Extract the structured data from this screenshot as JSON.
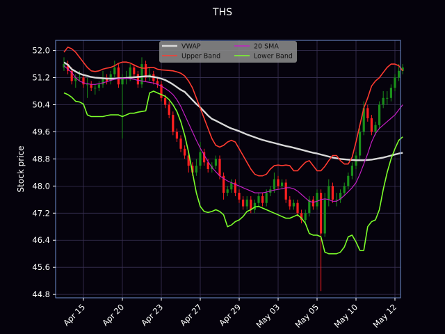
{
  "colors": {
    "background": "#05020c",
    "plot_border": "#6f8fcf",
    "grid": "#3a3256",
    "up_candle": "#1a8f1a",
    "down_candle": "#ff2020",
    "vwap": "#d9d9d9",
    "upper_band": "#ff3b30",
    "sma20": "#c41fc4",
    "lower_band": "#7dff2a"
  },
  "chart_data": {
    "type": "line",
    "subtype": "candlestick-with-bollinger-bands",
    "title": "THS",
    "xlabel": "",
    "ylabel": "Stock price",
    "ylim": [
      44.7,
      52.3
    ],
    "y_ticks": [
      44.8,
      45.6,
      46.4,
      47.2,
      48.0,
      48.8,
      49.6,
      50.4,
      51.2,
      52.0
    ],
    "y_tick_labels": [
      "44.8",
      "45.6",
      "46.4",
      "47.2",
      "48.0",
      "48.8",
      "49.6",
      "50.4",
      "51.2",
      "52.0"
    ],
    "x_tick_labels": [
      "Apr 15",
      "Apr 20",
      "Apr 23",
      "Apr 27",
      "Apr 29",
      "May 03",
      "May 05",
      "May 10",
      "May 12"
    ],
    "x_tick_index": [
      5,
      15,
      25,
      35,
      45,
      55,
      65,
      75,
      85
    ],
    "grid": true,
    "legend_position": "top-center",
    "legend": [
      "VWAP",
      "Upper Band",
      "20 SMA",
      "Lower Band"
    ],
    "n_points": 88,
    "series": [
      {
        "name": "VWAP",
        "values": [
          51.65,
          51.58,
          51.45,
          51.38,
          51.32,
          51.28,
          51.25,
          51.22,
          51.2,
          51.19,
          51.18,
          51.17,
          51.17,
          51.17,
          51.18,
          51.18,
          51.19,
          51.2,
          51.21,
          51.22,
          51.23,
          51.24,
          51.24,
          51.22,
          51.2,
          51.17,
          51.13,
          51.07,
          51.0,
          50.92,
          50.84,
          50.78,
          50.66,
          50.54,
          50.42,
          50.32,
          50.2,
          50.08,
          49.98,
          49.93,
          49.87,
          49.81,
          49.75,
          49.7,
          49.66,
          49.62,
          49.57,
          49.52,
          49.48,
          49.44,
          49.4,
          49.36,
          49.33,
          49.3,
          49.27,
          49.24,
          49.21,
          49.18,
          49.16,
          49.13,
          49.1,
          49.07,
          49.04,
          49.01,
          48.98,
          48.96,
          48.93,
          48.9,
          48.87,
          48.84,
          48.82,
          48.8,
          48.79,
          48.78,
          48.77,
          48.76,
          48.76,
          48.76,
          48.77,
          48.78,
          48.8,
          48.82,
          48.84,
          48.87,
          48.9,
          48.93,
          48.96,
          48.98
        ]
      },
      {
        "name": "Upper Band",
        "values": [
          51.95,
          52.1,
          52.05,
          51.95,
          51.8,
          51.65,
          51.5,
          51.4,
          51.38,
          51.4,
          51.45,
          51.48,
          51.5,
          51.55,
          51.62,
          51.66,
          51.66,
          51.63,
          51.57,
          51.52,
          51.48,
          51.48,
          51.5,
          51.5,
          51.45,
          51.43,
          51.42,
          51.41,
          51.4,
          51.37,
          51.33,
          51.25,
          51.1,
          50.9,
          50.6,
          50.3,
          50.0,
          49.7,
          49.4,
          49.2,
          49.15,
          49.2,
          49.3,
          49.35,
          49.3,
          49.1,
          48.9,
          48.7,
          48.5,
          48.35,
          48.3,
          48.3,
          48.35,
          48.5,
          48.6,
          48.62,
          48.6,
          48.62,
          48.6,
          48.45,
          48.45,
          48.58,
          48.7,
          48.75,
          48.6,
          48.45,
          48.45,
          48.58,
          48.75,
          48.9,
          48.9,
          48.75,
          48.65,
          48.65,
          48.85,
          49.3,
          49.8,
          50.3,
          50.6,
          50.95,
          51.1,
          51.2,
          51.35,
          51.5,
          51.6,
          51.6,
          51.55,
          51.4
        ]
      },
      {
        "name": "20 SMA",
        "values": [
          51.55,
          51.45,
          51.35,
          51.2,
          51.1,
          51.05,
          51.02,
          51.0,
          51.0,
          51.02,
          51.05,
          51.08,
          51.12,
          51.15,
          51.17,
          51.18,
          51.18,
          51.17,
          51.15,
          51.12,
          51.1,
          51.08,
          51.06,
          51.04,
          51.0,
          50.95,
          50.88,
          50.8,
          50.7,
          50.55,
          50.35,
          50.1,
          49.85,
          49.6,
          49.35,
          49.12,
          48.92,
          48.72,
          48.55,
          48.42,
          48.3,
          48.22,
          48.15,
          48.1,
          48.05,
          48.0,
          47.95,
          47.9,
          47.85,
          47.8,
          47.8,
          47.8,
          47.82,
          47.85,
          47.88,
          47.9,
          47.92,
          47.95,
          47.95,
          47.92,
          47.85,
          47.75,
          47.65,
          47.55,
          47.52,
          47.55,
          47.6,
          47.62,
          47.6,
          47.55,
          47.55,
          47.62,
          47.72,
          47.83,
          47.95,
          48.1,
          48.35,
          48.65,
          48.95,
          49.3,
          49.55,
          49.7,
          49.8,
          49.9,
          50.0,
          50.1,
          50.25,
          50.4
        ]
      },
      {
        "name": "Lower Band",
        "values": [
          50.75,
          50.7,
          50.62,
          50.5,
          50.48,
          50.42,
          50.1,
          50.05,
          50.05,
          50.05,
          50.05,
          50.08,
          50.1,
          50.1,
          50.1,
          50.05,
          50.1,
          50.15,
          50.15,
          50.18,
          50.2,
          50.22,
          50.75,
          50.8,
          50.75,
          50.7,
          50.65,
          50.55,
          50.4,
          50.2,
          49.9,
          49.5,
          49.0,
          48.4,
          47.8,
          47.4,
          47.25,
          47.22,
          47.25,
          47.3,
          47.25,
          47.15,
          46.8,
          46.85,
          46.95,
          47.0,
          47.1,
          47.25,
          47.3,
          47.38,
          47.4,
          47.35,
          47.3,
          47.25,
          47.2,
          47.15,
          47.1,
          47.05,
          47.05,
          47.1,
          47.15,
          47.05,
          46.9,
          46.6,
          46.55,
          46.55,
          46.5,
          46.05,
          46.0,
          46.0,
          46.0,
          46.05,
          46.2,
          46.5,
          46.55,
          46.35,
          46.1,
          46.1,
          46.8,
          46.95,
          47.0,
          47.3,
          47.9,
          48.4,
          48.8,
          49.1,
          49.35,
          49.45
        ]
      }
    ],
    "candles": {
      "open": [
        51.5,
        51.6,
        51.4,
        51.1,
        51.2,
        51.2,
        51.0,
        51.0,
        50.9,
        50.9,
        51.0,
        51.2,
        51.1,
        51.3,
        51.5,
        51.0,
        51.2,
        51.2,
        51.5,
        51.3,
        51.0,
        51.6,
        51.2,
        51.3,
        51.1,
        51.0,
        50.6,
        50.4,
        50.1,
        49.6,
        49.4,
        49.1,
        48.9,
        48.6,
        48.4,
        48.6,
        49.0,
        48.7,
        48.5,
        48.6,
        48.8,
        48.3,
        47.8,
        47.9,
        48.1,
        47.8,
        47.6,
        47.4,
        47.6,
        47.3,
        47.5,
        47.7,
        47.5,
        47.8,
        47.9,
        48.2,
        48.0,
        48.1,
        47.6,
        47.4,
        47.5,
        47.2,
        47.0,
        47.2,
        47.6,
        47.4,
        47.8,
        46.6,
        47.6,
        48.0,
        47.6,
        47.6,
        47.8,
        48.0,
        48.3,
        48.6,
        48.9,
        49.6,
        50.3,
        50.0,
        49.6,
        49.8,
        50.4,
        50.6,
        50.6,
        50.9,
        51.2,
        51.4
      ],
      "close": [
        51.6,
        51.4,
        51.1,
        51.2,
        51.2,
        51.0,
        51.0,
        50.9,
        50.9,
        51.0,
        51.2,
        51.1,
        51.3,
        51.5,
        51.0,
        51.2,
        51.2,
        51.5,
        51.3,
        51.0,
        51.6,
        51.2,
        51.3,
        51.1,
        51.0,
        50.6,
        50.4,
        50.1,
        49.6,
        49.4,
        49.1,
        48.9,
        48.6,
        48.4,
        48.6,
        49.0,
        48.7,
        48.5,
        48.6,
        48.8,
        48.3,
        47.8,
        47.9,
        48.1,
        47.8,
        47.6,
        47.4,
        47.6,
        47.3,
        47.5,
        47.7,
        47.5,
        47.8,
        47.9,
        48.2,
        48.0,
        48.1,
        47.6,
        47.4,
        47.5,
        47.2,
        47.0,
        47.2,
        47.6,
        47.4,
        47.8,
        46.6,
        47.6,
        48.0,
        47.6,
        47.6,
        47.8,
        48.0,
        48.3,
        48.6,
        48.9,
        49.6,
        50.3,
        50.0,
        49.6,
        49.8,
        50.4,
        50.6,
        50.6,
        50.9,
        51.2,
        51.4,
        51.5
      ],
      "high": [
        51.8,
        51.7,
        51.5,
        51.3,
        51.4,
        51.3,
        51.2,
        51.1,
        51.0,
        51.1,
        51.4,
        51.3,
        51.4,
        51.7,
        51.6,
        51.3,
        51.4,
        51.6,
        51.6,
        51.4,
        51.8,
        51.7,
        51.5,
        51.4,
        51.2,
        51.1,
        50.7,
        50.5,
        50.2,
        49.7,
        49.5,
        49.2,
        49.0,
        48.7,
        48.8,
        49.3,
        49.1,
        48.8,
        48.7,
        48.9,
        48.9,
        48.4,
        48.0,
        48.2,
        48.2,
        47.9,
        47.7,
        47.7,
        47.7,
        47.6,
        47.8,
        47.8,
        47.9,
        48.0,
        48.4,
        48.3,
        48.2,
        48.2,
        47.7,
        47.6,
        47.6,
        47.3,
        47.3,
        47.7,
        47.7,
        47.9,
        47.9,
        47.8,
        48.2,
        48.1,
        47.8,
        47.9,
        48.1,
        48.4,
        48.7,
        49.0,
        49.7,
        50.5,
        50.4,
        50.1,
        49.9,
        50.5,
        50.8,
        50.8,
        51.0,
        51.3,
        51.6,
        51.6
      ],
      "low": [
        51.4,
        51.3,
        51.0,
        50.9,
        51.1,
        50.9,
        50.6,
        50.8,
        50.7,
        50.8,
        50.9,
        51.0,
        51.0,
        51.2,
        50.9,
        49.4,
        51.0,
        51.1,
        51.2,
        50.9,
        50.9,
        51.1,
        51.1,
        51.0,
        50.9,
        50.5,
        50.3,
        50.0,
        49.5,
        49.3,
        49.0,
        48.8,
        48.4,
        48.3,
        48.3,
        48.5,
        48.6,
        48.4,
        48.4,
        48.5,
        48.2,
        47.6,
        47.7,
        47.8,
        47.7,
        47.5,
        47.3,
        47.3,
        47.2,
        47.2,
        47.4,
        47.4,
        47.4,
        47.7,
        47.8,
        47.9,
        47.9,
        47.5,
        47.3,
        47.3,
        47.1,
        46.9,
        46.9,
        47.1,
        47.3,
        47.3,
        44.9,
        46.5,
        47.4,
        47.5,
        47.4,
        47.5,
        47.7,
        47.9,
        48.2,
        48.5,
        48.8,
        49.5,
        49.9,
        49.5,
        49.5,
        49.7,
        50.3,
        50.4,
        50.5,
        50.8,
        51.1,
        51.3
      ]
    }
  }
}
